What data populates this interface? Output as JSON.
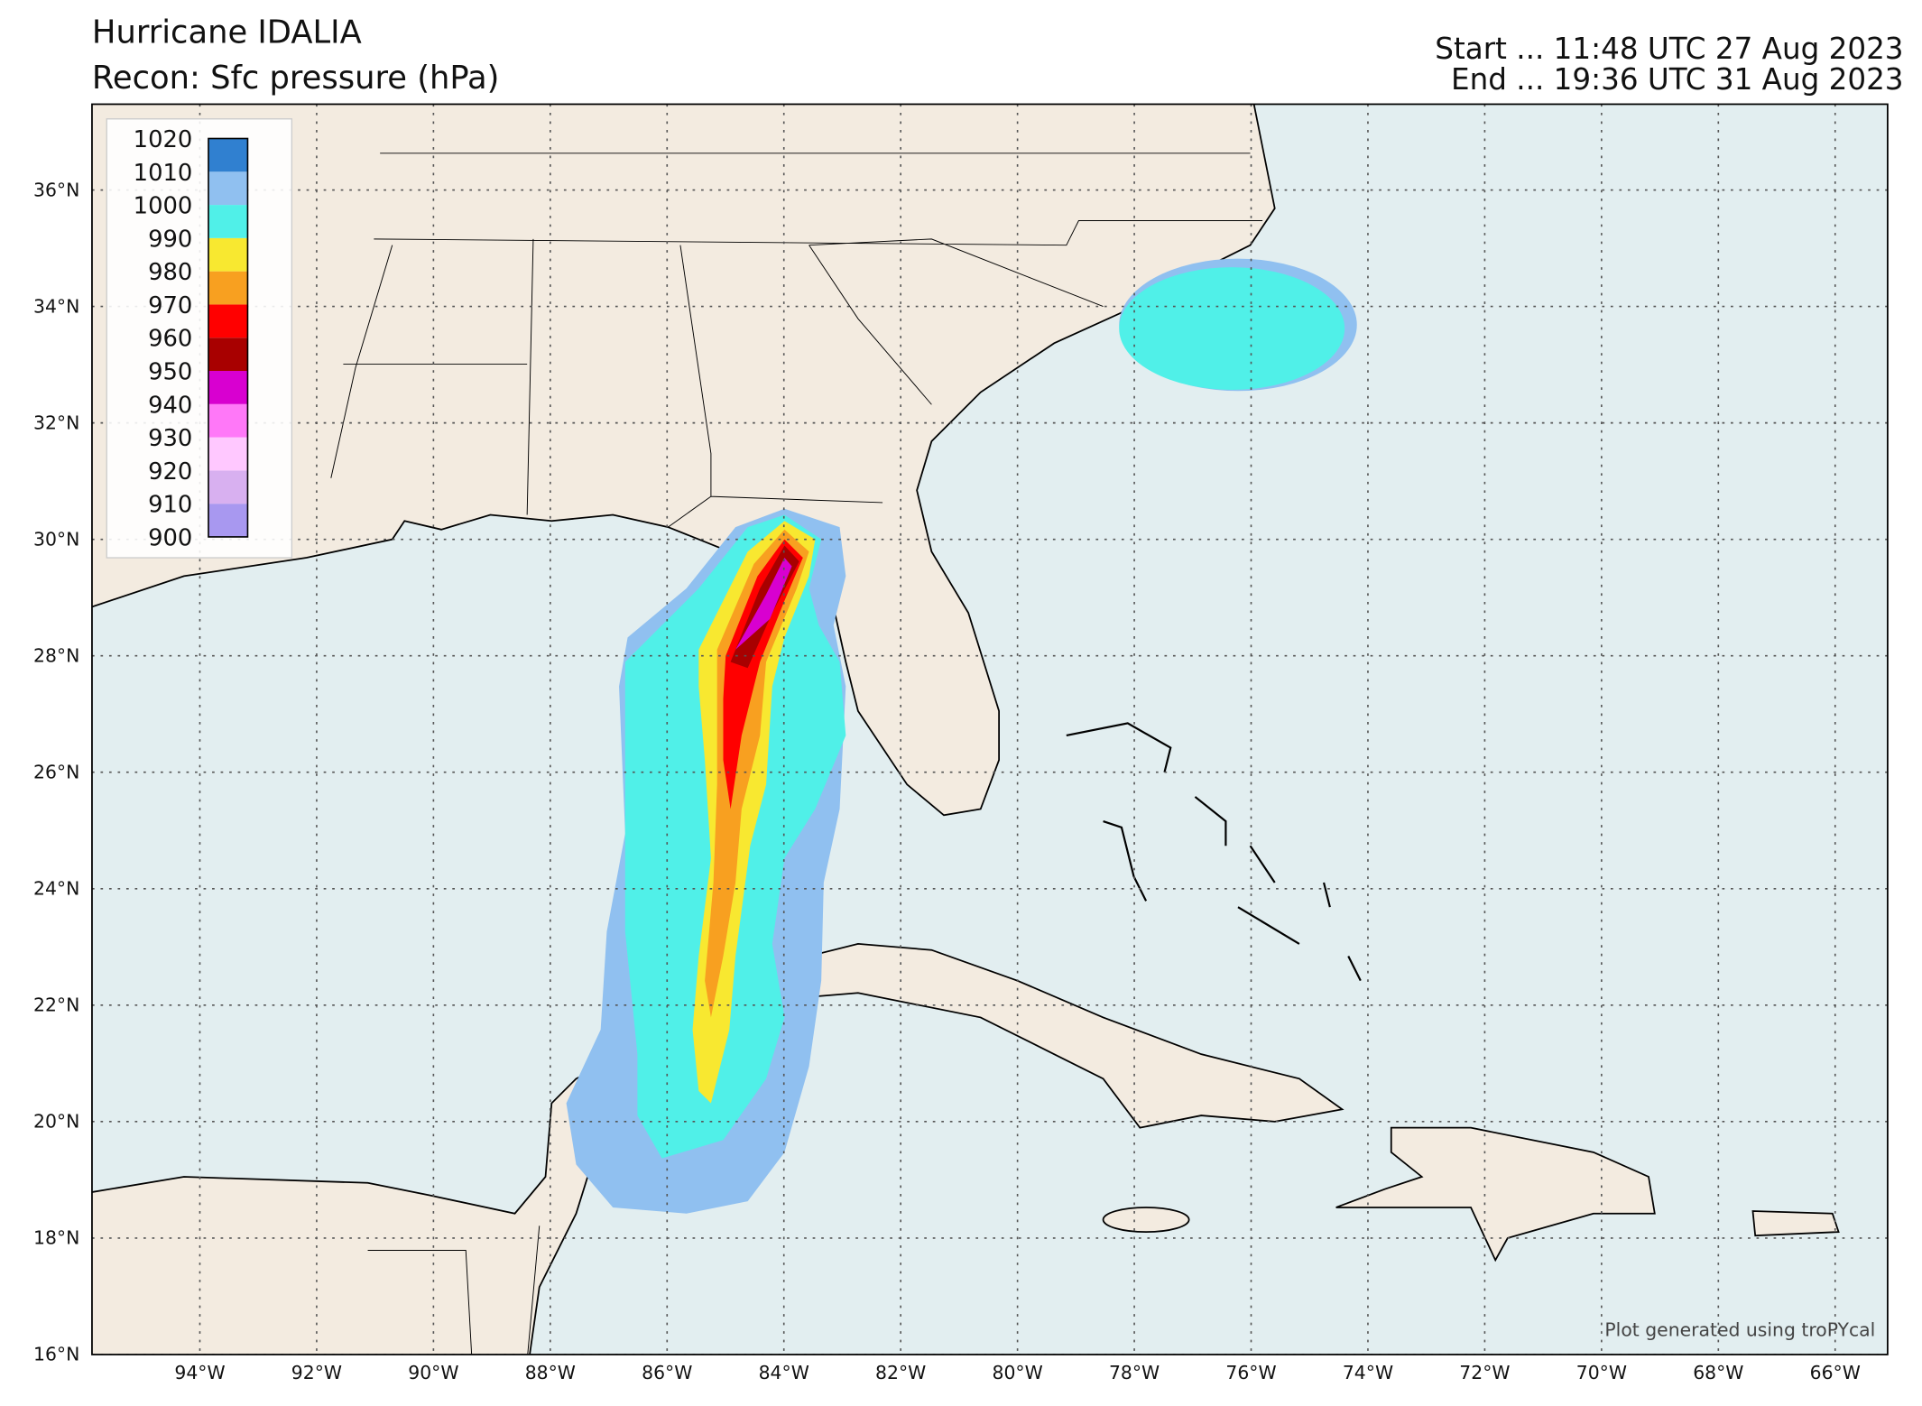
{
  "header": {
    "title": "Hurricane IDALIA",
    "subtitle": "Recon: Sfc pressure (hPa)",
    "start": "Start ... 11:48 UTC 27 Aug 2023",
    "end": "End ... 19:36 UTC 31 Aug 2023"
  },
  "map": {
    "lat_labels": [
      "16°N",
      "18°N",
      "20°N",
      "22°N",
      "24°N",
      "26°N",
      "28°N",
      "30°N",
      "32°N",
      "34°N",
      "36°N"
    ],
    "lon_labels": [
      "94°W",
      "92°W",
      "90°W",
      "88°W",
      "86°W",
      "84°W",
      "82°W",
      "80°W",
      "78°W",
      "76°W",
      "74°W",
      "72°W",
      "70°W",
      "68°W",
      "66°W"
    ],
    "credit": "Plot generated using troPYcal"
  },
  "colorbar": {
    "levels": [
      900,
      910,
      920,
      930,
      940,
      950,
      960,
      970,
      980,
      990,
      1000,
      1010,
      1020
    ],
    "colors": [
      "#a898f0",
      "#d8b0f0",
      "#ffc8ff",
      "#ff78f8",
      "#d800d0",
      "#a80000",
      "#ff0000",
      "#f8a020",
      "#f8e830",
      "#50f0e8",
      "#90c0f0",
      "#3080d0"
    ]
  }
}
